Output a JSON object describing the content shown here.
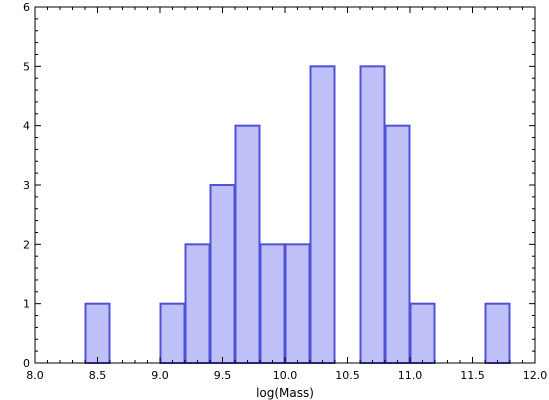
{
  "chart_data": {
    "type": "bar",
    "title": "",
    "xlabel": "log(Mass)",
    "ylabel": "",
    "xlim": [
      8.0,
      12.0
    ],
    "ylim": [
      0,
      6
    ],
    "bin_width": 0.2,
    "bins": [
      {
        "x0": 8.4,
        "x1": 8.6,
        "count": 1
      },
      {
        "x0": 9.0,
        "x1": 9.2,
        "count": 1
      },
      {
        "x0": 9.2,
        "x1": 9.4,
        "count": 2
      },
      {
        "x0": 9.4,
        "x1": 9.6,
        "count": 3
      },
      {
        "x0": 9.6,
        "x1": 9.8,
        "count": 4
      },
      {
        "x0": 9.8,
        "x1": 10.0,
        "count": 2
      },
      {
        "x0": 10.0,
        "x1": 10.2,
        "count": 2
      },
      {
        "x0": 10.2,
        "x1": 10.4,
        "count": 5
      },
      {
        "x0": 10.6,
        "x1": 10.8,
        "count": 5
      },
      {
        "x0": 10.8,
        "x1": 11.0,
        "count": 4
      },
      {
        "x0": 11.0,
        "x1": 11.2,
        "count": 1
      },
      {
        "x0": 11.6,
        "x1": 11.8,
        "count": 1
      }
    ],
    "x_ticks": [
      "8.0",
      "8.5",
      "9.0",
      "9.5",
      "10.0",
      "10.5",
      "11.0",
      "11.5",
      "12.0"
    ],
    "y_ticks": [
      "0",
      "1",
      "2",
      "3",
      "4",
      "5",
      "6"
    ],
    "grid": false,
    "colors": {
      "bar_fill": "#bfc0f8",
      "bar_edge": "#5050d8",
      "axis": "#000000"
    }
  }
}
